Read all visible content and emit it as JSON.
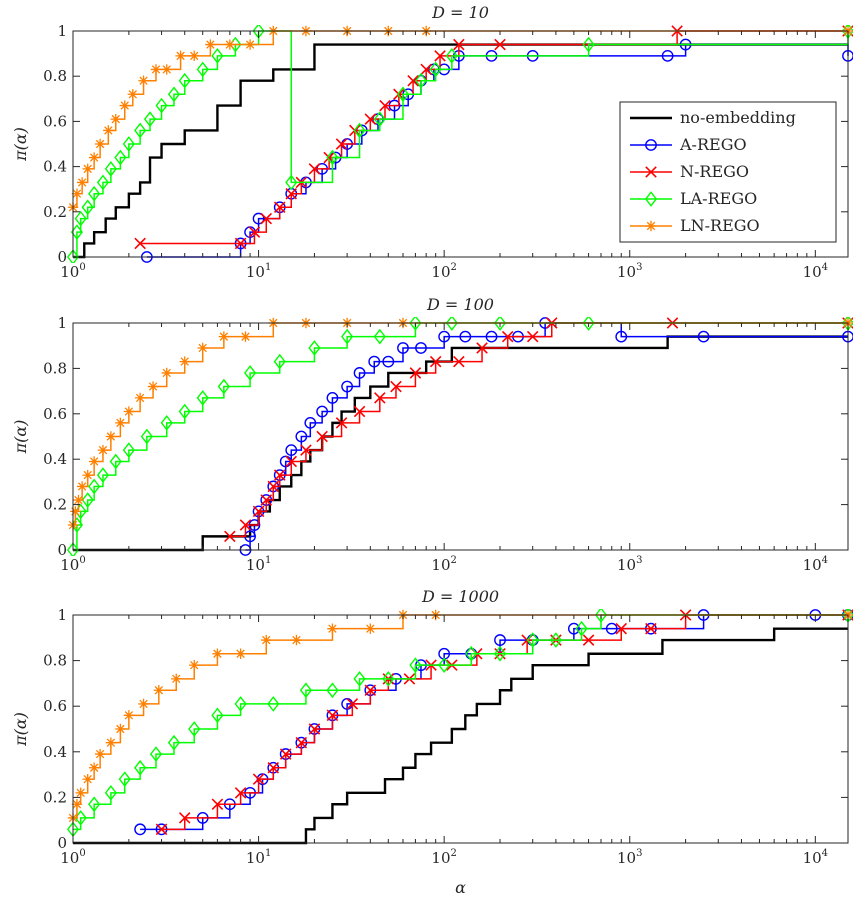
{
  "chart_data": {
    "type": "line",
    "xlabel": "α",
    "ylabel": "π(α)",
    "x_scale": "log",
    "xlim": [
      1,
      15000
    ],
    "ylim": [
      0,
      1
    ],
    "x_ticks": [
      {
        "value": 1,
        "base": "10",
        "exp": "0"
      },
      {
        "value": 10,
        "base": "10",
        "exp": "1"
      },
      {
        "value": 100,
        "base": "10",
        "exp": "2"
      },
      {
        "value": 1000,
        "base": "10",
        "exp": "3"
      },
      {
        "value": 10000,
        "base": "10",
        "exp": "4"
      }
    ],
    "y_ticks": [
      {
        "value": 0,
        "label": "0"
      },
      {
        "value": 0.2,
        "label": "0.2"
      },
      {
        "value": 0.4,
        "label": "0.4"
      },
      {
        "value": 0.6,
        "label": "0.6"
      },
      {
        "value": 0.8,
        "label": "0.8"
      },
      {
        "value": 1,
        "label": "1"
      }
    ],
    "legend": {
      "placement": "east",
      "entries": [
        {
          "name": "no-embedding",
          "color": "#000000",
          "marker": "none"
        },
        {
          "name": "A-REGO",
          "color": "#0000ff",
          "marker": "circle"
        },
        {
          "name": "N-REGO",
          "color": "#ff0000",
          "marker": "x"
        },
        {
          "name": "LA-REGO",
          "color": "#00ff00",
          "marker": "diamond"
        },
        {
          "name": "LN-REGO",
          "color": "#ff8000",
          "marker": "asterisk"
        }
      ]
    },
    "panels": [
      {
        "title": "D = 10",
        "series": [
          {
            "name": "no-embedding",
            "x": [
              1.0,
              1.15,
              1.3,
              1.5,
              1.7,
              2.0,
              2.3,
              2.6,
              3.0,
              4.0,
              6.0,
              8.0,
              12.0,
              20.0,
              25.0,
              15000
            ],
            "y": [
              0.0,
              0.06,
              0.11,
              0.17,
              0.22,
              0.28,
              0.33,
              0.44,
              0.5,
              0.56,
              0.67,
              0.78,
              0.83,
              0.94,
              0.94,
              0.94
            ]
          },
          {
            "name": "A-REGO",
            "x": [
              2.5,
              8.0,
              9.0,
              10.0,
              13.0,
              15.0,
              18.0,
              22.0,
              26.0,
              30.0,
              36.0,
              44.0,
              54.0,
              64.0,
              75.0,
              88.0,
              100.0,
              120.0,
              180.0,
              300.0,
              1600.0,
              2000.0,
              15000
            ],
            "y": [
              0.0,
              0.06,
              0.11,
              0.17,
              0.22,
              0.28,
              0.33,
              0.39,
              0.44,
              0.5,
              0.56,
              0.61,
              0.67,
              0.72,
              0.78,
              0.83,
              0.83,
              0.89,
              0.89,
              0.89,
              0.89,
              0.94,
              0.89
            ]
          },
          {
            "name": "N-REGO",
            "x": [
              2.3,
              8.0,
              9.5,
              11.0,
              13.0,
              15.0,
              17.0,
              20.0,
              24.0,
              28.0,
              33.0,
              40.0,
              48.0,
              57.0,
              68.0,
              80.0,
              95.0,
              120.0,
              200.0,
              1800.0,
              15000
            ],
            "y": [
              0.06,
              0.06,
              0.11,
              0.17,
              0.22,
              0.28,
              0.33,
              0.39,
              0.44,
              0.5,
              0.56,
              0.61,
              0.67,
              0.72,
              0.78,
              0.83,
              0.89,
              0.94,
              0.94,
              1.0,
              1.0
            ]
          },
          {
            "name": "LA-REGO",
            "x": [
              1.0,
              1.05,
              1.1,
              1.2,
              1.3,
              1.45,
              1.6,
              1.8,
              2.0,
              2.3,
              2.6,
              3.0,
              3.5,
              4.0,
              5.0,
              6.0,
              7.5,
              10.0,
              15.0,
              25.0,
              35.0,
              45.0,
              60.0,
              75.0,
              90.0,
              110.0,
              600.0,
              15000
            ],
            "y": [
              0.0,
              0.11,
              0.17,
              0.22,
              0.28,
              0.33,
              0.39,
              0.44,
              0.5,
              0.56,
              0.61,
              0.67,
              0.72,
              0.78,
              0.83,
              0.89,
              0.94,
              1.0,
              0.33,
              0.44,
              0.56,
              0.61,
              0.72,
              0.78,
              0.83,
              0.89,
              0.94,
              1.0
            ]
          },
          {
            "name": "LN-REGO",
            "x": [
              1.0,
              1.05,
              1.12,
              1.2,
              1.3,
              1.4,
              1.55,
              1.7,
              1.9,
              2.1,
              2.4,
              2.8,
              3.2,
              3.8,
              4.5,
              5.5,
              7.0,
              9.0,
              12.0,
              18.0,
              30.0,
              50.0,
              80.0,
              15000
            ],
            "y": [
              0.22,
              0.28,
              0.33,
              0.39,
              0.44,
              0.5,
              0.56,
              0.61,
              0.67,
              0.72,
              0.78,
              0.83,
              0.83,
              0.89,
              0.89,
              0.94,
              0.94,
              0.94,
              1.0,
              1.0,
              1.0,
              1.0,
              1.0,
              1.0
            ]
          }
        ]
      },
      {
        "title": "D = 100",
        "series": [
          {
            "name": "no-embedding",
            "x": [
              1.0,
              5.0,
              7.0,
              9.0,
              10.0,
              11.5,
              13.0,
              15.0,
              17.0,
              19.0,
              22.0,
              25.0,
              28.0,
              33.0,
              40.0,
              50.0,
              60.0,
              80.0,
              110.0,
              150.0,
              350.0,
              1600.0,
              15000
            ],
            "y": [
              0.0,
              0.06,
              0.06,
              0.11,
              0.17,
              0.22,
              0.28,
              0.33,
              0.39,
              0.44,
              0.5,
              0.56,
              0.61,
              0.67,
              0.72,
              0.78,
              0.78,
              0.83,
              0.89,
              0.89,
              0.89,
              0.94,
              0.94
            ]
          },
          {
            "name": "A-REGO",
            "x": [
              8.5,
              9.0,
              9.5,
              10.0,
              11.0,
              12.0,
              13.0,
              14.0,
              15.0,
              17.0,
              19.0,
              22.0,
              25.0,
              30.0,
              35.0,
              42.0,
              50.0,
              60.0,
              75.0,
              100.0,
              130.0,
              180.0,
              250.0,
              350.0,
              900.0,
              2500.0,
              15000
            ],
            "y": [
              0.0,
              0.06,
              0.11,
              0.17,
              0.22,
              0.28,
              0.33,
              0.39,
              0.44,
              0.5,
              0.56,
              0.61,
              0.67,
              0.72,
              0.78,
              0.83,
              0.83,
              0.89,
              0.89,
              0.94,
              0.94,
              0.94,
              0.94,
              1.0,
              0.94,
              0.94,
              0.94
            ]
          },
          {
            "name": "N-REGO",
            "x": [
              7.0,
              8.5,
              10.0,
              11.0,
              12.0,
              13.0,
              15.0,
              18.0,
              22.0,
              28.0,
              35.0,
              45.0,
              55.0,
              70.0,
              90.0,
              120.0,
              160.0,
              220.0,
              300.0,
              380.0,
              1700.0,
              15000
            ],
            "y": [
              0.06,
              0.11,
              0.17,
              0.22,
              0.28,
              0.33,
              0.39,
              0.44,
              0.5,
              0.56,
              0.61,
              0.67,
              0.72,
              0.78,
              0.83,
              0.83,
              0.89,
              0.94,
              0.94,
              1.0,
              1.0,
              1.0
            ]
          },
          {
            "name": "LA-REGO",
            "x": [
              1.0,
              1.05,
              1.1,
              1.2,
              1.3,
              1.45,
              1.7,
              2.0,
              2.5,
              3.2,
              4.0,
              5.0,
              6.5,
              9.0,
              13.0,
              20.0,
              30.0,
              45.0,
              70.0,
              110.0,
              200.0,
              600.0,
              15000
            ],
            "y": [
              0.0,
              0.11,
              0.17,
              0.22,
              0.28,
              0.33,
              0.39,
              0.44,
              0.5,
              0.56,
              0.61,
              0.67,
              0.72,
              0.78,
              0.83,
              0.89,
              0.94,
              0.94,
              1.0,
              1.0,
              1.0,
              1.0,
              1.0
            ]
          },
          {
            "name": "LN-REGO",
            "x": [
              1.0,
              1.03,
              1.07,
              1.12,
              1.2,
              1.3,
              1.45,
              1.6,
              1.8,
              2.0,
              2.3,
              2.7,
              3.2,
              4.0,
              5.0,
              6.5,
              8.5,
              12.0,
              18.0,
              30.0,
              60.0,
              15000
            ],
            "y": [
              0.11,
              0.17,
              0.22,
              0.28,
              0.33,
              0.39,
              0.44,
              0.5,
              0.56,
              0.61,
              0.67,
              0.72,
              0.78,
              0.83,
              0.89,
              0.94,
              0.94,
              1.0,
              1.0,
              1.0,
              1.0,
              1.0
            ]
          }
        ]
      },
      {
        "title": "D = 1000",
        "series": [
          {
            "name": "no-embedding",
            "x": [
              1.0,
              18.0,
              20.0,
              25.0,
              30.0,
              38.0,
              48.0,
              60.0,
              70.0,
              85.0,
              110.0,
              130.0,
              150.0,
              170.0,
              200.0,
              230.0,
              260.0,
              300.0,
              400.0,
              600.0,
              800.0,
              1100.0,
              1500.0,
              2500.0,
              6000.0,
              15000
            ],
            "y": [
              0.0,
              0.06,
              0.11,
              0.17,
              0.22,
              0.22,
              0.28,
              0.33,
              0.39,
              0.44,
              0.5,
              0.56,
              0.61,
              0.61,
              0.67,
              0.72,
              0.72,
              0.78,
              0.78,
              0.83,
              0.83,
              0.83,
              0.89,
              0.89,
              0.94,
              0.94
            ]
          },
          {
            "name": "A-REGO",
            "x": [
              2.3,
              3.0,
              5.0,
              7.0,
              9.0,
              10.5,
              12.0,
              14.0,
              17.0,
              20.0,
              25.0,
              30.0,
              40.0,
              55.0,
              75.0,
              100.0,
              140.0,
              200.0,
              300.0,
              500.0,
              800.0,
              1300.0,
              2500.0,
              10000.0,
              15000
            ],
            "y": [
              0.06,
              0.06,
              0.11,
              0.17,
              0.22,
              0.28,
              0.33,
              0.39,
              0.44,
              0.5,
              0.56,
              0.61,
              0.67,
              0.72,
              0.78,
              0.83,
              0.83,
              0.89,
              0.89,
              0.94,
              0.94,
              0.94,
              1.0,
              1.0,
              1.0
            ]
          },
          {
            "name": "N-REGO",
            "x": [
              3.0,
              4.0,
              6.0,
              8.0,
              10.0,
              12.0,
              14.0,
              17.0,
              20.0,
              25.0,
              32.0,
              40.0,
              50.0,
              65.0,
              85.0,
              110.0,
              150.0,
              200.0,
              280.0,
              400.0,
              600.0,
              900.0,
              1300.0,
              2000.0,
              15000
            ],
            "y": [
              0.06,
              0.11,
              0.17,
              0.22,
              0.28,
              0.33,
              0.39,
              0.44,
              0.5,
              0.56,
              0.61,
              0.67,
              0.72,
              0.72,
              0.78,
              0.78,
              0.83,
              0.83,
              0.89,
              0.89,
              0.89,
              0.94,
              0.94,
              1.0,
              1.0
            ]
          },
          {
            "name": "LA-REGO",
            "x": [
              1.0,
              1.1,
              1.3,
              1.6,
              1.9,
              2.3,
              2.8,
              3.5,
              4.5,
              6.0,
              8.0,
              12.0,
              18.0,
              25.0,
              35.0,
              50.0,
              70.0,
              100.0,
              140.0,
              200.0,
              300.0,
              400.0,
              550.0,
              700.0,
              15000
            ],
            "y": [
              0.06,
              0.11,
              0.17,
              0.22,
              0.28,
              0.33,
              0.39,
              0.44,
              0.5,
              0.56,
              0.61,
              0.61,
              0.67,
              0.67,
              0.72,
              0.72,
              0.78,
              0.78,
              0.83,
              0.83,
              0.89,
              0.89,
              0.94,
              1.0,
              1.0
            ]
          },
          {
            "name": "LN-REGO",
            "x": [
              1.0,
              1.05,
              1.1,
              1.2,
              1.3,
              1.4,
              1.6,
              1.8,
              2.0,
              2.4,
              2.9,
              3.6,
              4.5,
              6.0,
              8.0,
              11.0,
              16.0,
              25.0,
              40.0,
              60.0,
              90.0,
              15000
            ],
            "y": [
              0.11,
              0.17,
              0.22,
              0.28,
              0.33,
              0.39,
              0.44,
              0.5,
              0.56,
              0.61,
              0.67,
              0.72,
              0.78,
              0.83,
              0.83,
              0.89,
              0.89,
              0.94,
              0.94,
              1.0,
              1.0,
              1.0
            ]
          }
        ]
      }
    ]
  }
}
